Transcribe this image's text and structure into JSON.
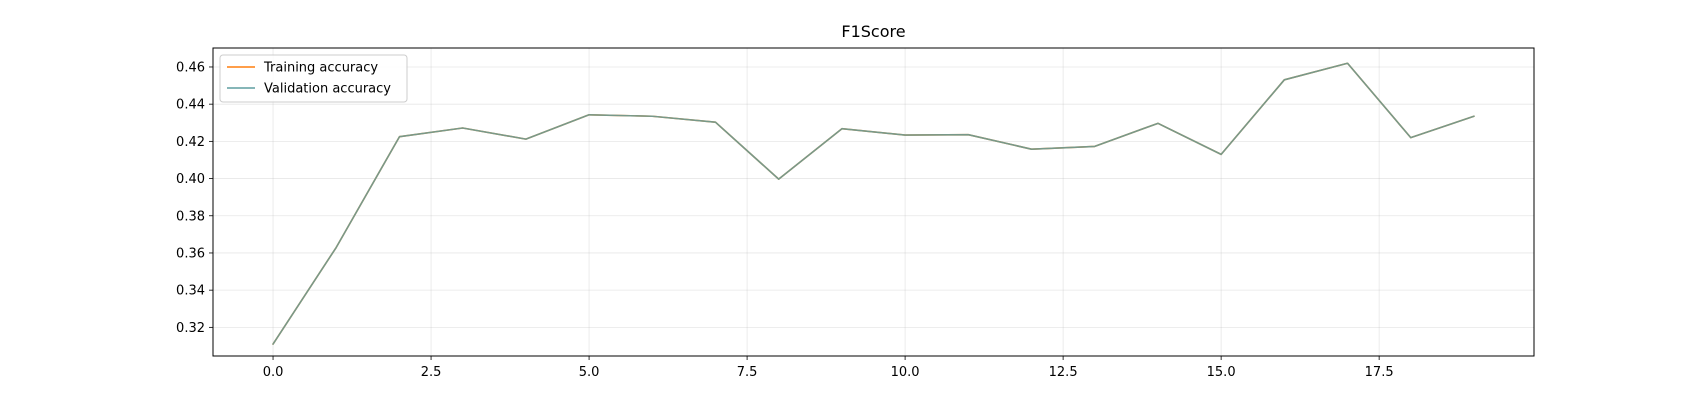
{
  "chart_data": {
    "type": "line",
    "title": "F1Score",
    "xlabel": "",
    "ylabel": "",
    "xlim": [
      -0.95,
      19.95
    ],
    "ylim": [
      0.3046,
      0.4702
    ],
    "grid": true,
    "legend_position": "top-left",
    "x": [
      0,
      1,
      2,
      3,
      4,
      5,
      6,
      7,
      8,
      9,
      10,
      11,
      12,
      13,
      14,
      15,
      16,
      17,
      18,
      19
    ],
    "series": [
      {
        "name": "Training accuracy",
        "color": "#ff7f0e",
        "values": [
          0.311,
          0.363,
          0.4225,
          0.4272,
          0.4212,
          0.4343,
          0.4335,
          0.4303,
          0.3997,
          0.4268,
          0.4234,
          0.4236,
          0.4158,
          0.4173,
          0.4297,
          0.413,
          0.4531,
          0.462,
          0.422,
          0.4335
        ]
      },
      {
        "name": "Validation accuracy",
        "color": "#5f9ea0",
        "values": [
          0.311,
          0.363,
          0.4225,
          0.4272,
          0.4212,
          0.4343,
          0.4335,
          0.4303,
          0.3997,
          0.4268,
          0.4234,
          0.4236,
          0.4158,
          0.4173,
          0.4297,
          0.413,
          0.4531,
          0.462,
          0.422,
          0.4335
        ]
      }
    ],
    "x_ticks": [
      0.0,
      2.5,
      5.0,
      7.5,
      10.0,
      12.5,
      15.0,
      17.5
    ],
    "x_tick_labels": [
      "0.0",
      "2.5",
      "5.0",
      "7.5",
      "10.0",
      "12.5",
      "15.0",
      "17.5"
    ],
    "y_ticks": [
      0.32,
      0.34,
      0.36,
      0.38,
      0.4,
      0.42,
      0.44,
      0.46
    ],
    "y_tick_labels": [
      "0.32",
      "0.34",
      "0.36",
      "0.38",
      "0.40",
      "0.42",
      "0.44",
      "0.46"
    ]
  }
}
